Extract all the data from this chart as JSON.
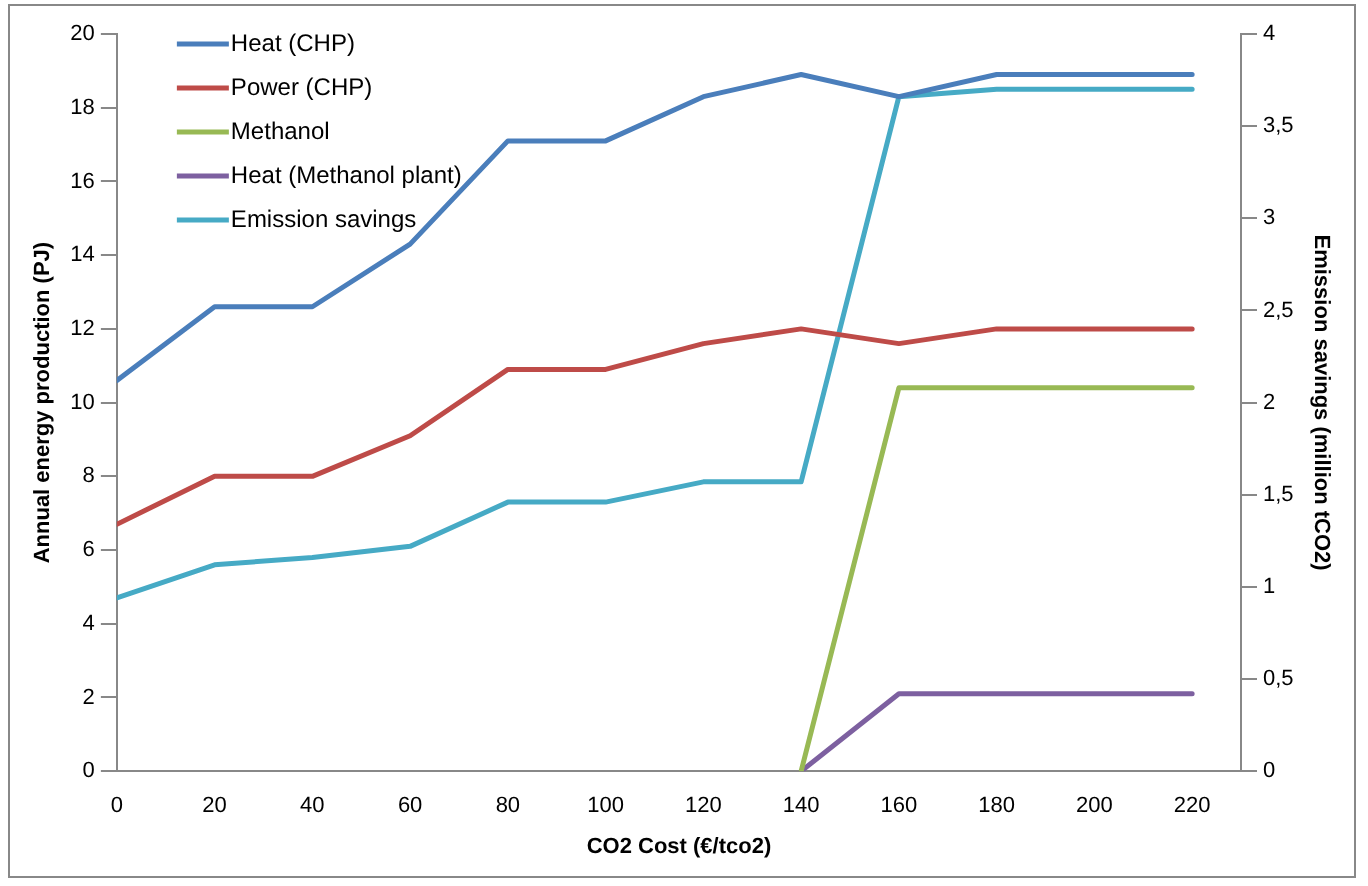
{
  "chart_data": {
    "type": "line",
    "xlabel": "CO2 Cost (€/tco2)",
    "ylabel": "Annual energy production (PJ)",
    "y2label": "Emission savings (million tCO2)",
    "x": [
      0,
      20,
      40,
      60,
      80,
      100,
      120,
      140,
      160,
      180,
      200,
      220
    ],
    "xlim": [
      0,
      230
    ],
    "xticks": [
      0,
      20,
      40,
      60,
      80,
      100,
      120,
      140,
      160,
      180,
      200,
      220
    ],
    "ylim": [
      0,
      20
    ],
    "yticks": [
      0,
      2,
      4,
      6,
      8,
      10,
      12,
      14,
      16,
      18,
      20
    ],
    "y2lim": [
      0,
      4
    ],
    "y2ticks": [
      0,
      {
        "value": 0.5,
        "label": "0,5"
      },
      1,
      {
        "value": 1.5,
        "label": "1,5"
      },
      2,
      {
        "value": 2.5,
        "label": "2,5"
      },
      3,
      {
        "value": 3.5,
        "label": "3,5"
      },
      4
    ],
    "grid": false,
    "legend": "top left",
    "marker": "none",
    "line_style": "solid",
    "series": [
      {
        "name": "Heat (CHP)",
        "color": "#4a7ebb",
        "values": [
          10.6,
          12.6,
          12.6,
          14.3,
          17.1,
          17.1,
          18.3,
          18.9,
          18.3,
          18.9,
          18.9,
          18.9
        ]
      },
      {
        "name": "Power (CHP)",
        "color": "#be4b48",
        "values": [
          6.7,
          8.0,
          8.0,
          9.1,
          10.9,
          10.9,
          11.6,
          12.0,
          11.6,
          12.0,
          12.0,
          12.0
        ]
      },
      {
        "name": "Methanol",
        "color": "#98b954",
        "values": [
          null,
          null,
          null,
          null,
          null,
          null,
          null,
          0,
          10.4,
          10.4,
          10.4,
          10.4
        ]
      },
      {
        "name": "Heat (Methanol plant)",
        "color": "#7d60a0",
        "values": [
          null,
          null,
          null,
          null,
          null,
          null,
          null,
          0,
          2.1,
          2.1,
          2.1,
          2.1
        ]
      },
      {
        "name": "Emission savings",
        "color": "#46aac5",
        "axis": "y2",
        "values": [
          0.94,
          1.12,
          1.16,
          1.22,
          1.46,
          1.46,
          1.57,
          1.57,
          3.66,
          3.7,
          3.7,
          3.7
        ]
      }
    ]
  }
}
